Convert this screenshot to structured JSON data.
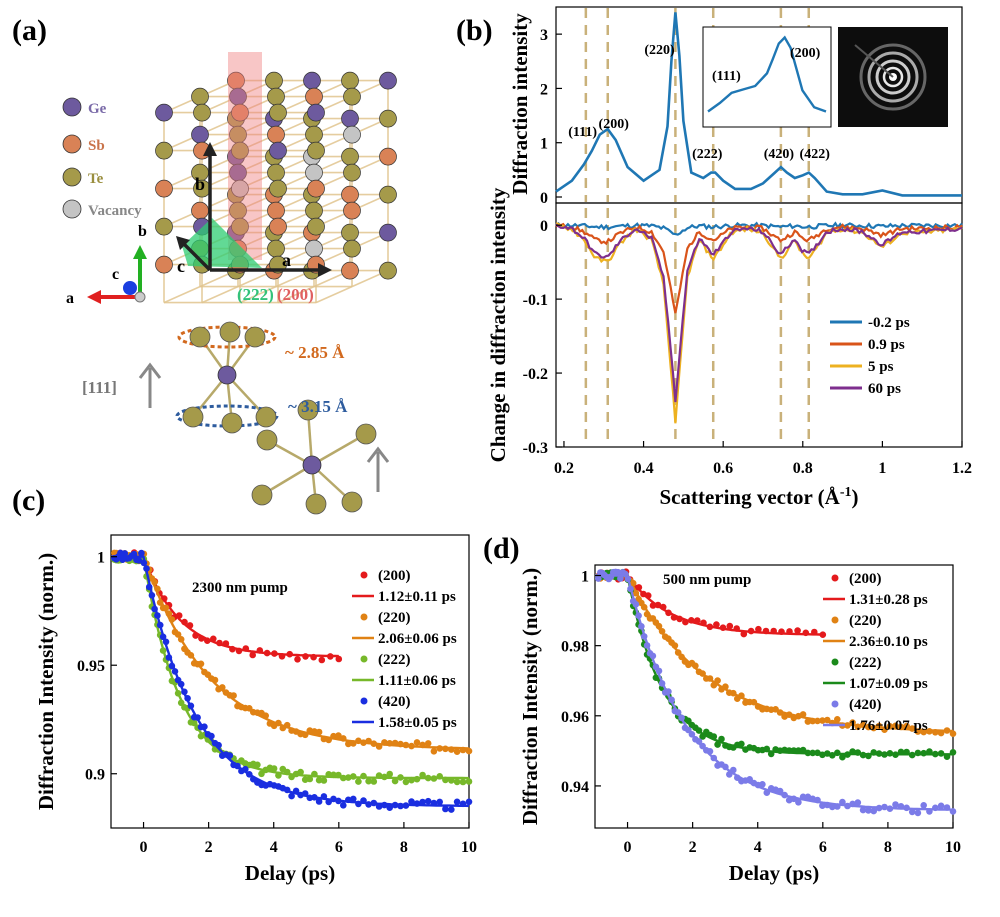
{
  "panels": {
    "a": {
      "label": "(a)",
      "elements": [
        {
          "name": "Ge",
          "color": "#6d5a9e"
        },
        {
          "name": "Sb",
          "color": "#d98256"
        },
        {
          "name": "Te",
          "color": "#a59a4a"
        },
        {
          "name": "Vacancy",
          "color": "#c4c4c4"
        }
      ],
      "axes": {
        "a": "a",
        "b": "b",
        "c": "c"
      },
      "planes": {
        "p222": "(222)",
        "p200": "(200)"
      },
      "bonds": {
        "short": "~ 2.85 Å",
        "long": "~ 3.15 Å",
        "direction": "[111]"
      }
    },
    "b": {
      "label": "(b)"
    },
    "c": {
      "label": "(c)"
    },
    "d": {
      "label": "(d)"
    }
  },
  "chart_data": [
    {
      "id": "b-top",
      "type": "line",
      "ylabel": "Diffraction intensity",
      "xlim": [
        0.18,
        1.2
      ],
      "ylim": [
        0,
        3.5
      ],
      "yticks": [
        0,
        1,
        2,
        3
      ],
      "reflection_labels": [
        "(111)",
        "(200)",
        "(220)",
        "(222)",
        "(420)",
        "(422)"
      ],
      "dashed_lines_x": [
        0.255,
        0.31,
        0.48,
        0.575,
        0.745,
        0.815
      ],
      "color": "#1f77b4",
      "x": [
        0.18,
        0.22,
        0.25,
        0.27,
        0.29,
        0.31,
        0.33,
        0.36,
        0.4,
        0.44,
        0.46,
        0.47,
        0.48,
        0.49,
        0.5,
        0.52,
        0.55,
        0.57,
        0.58,
        0.6,
        0.63,
        0.67,
        0.7,
        0.73,
        0.745,
        0.76,
        0.78,
        0.8,
        0.815,
        0.83,
        0.86,
        0.9,
        0.95,
        1.0,
        1.05,
        1.1,
        1.2
      ],
      "y": [
        0.1,
        0.3,
        0.6,
        0.85,
        1.15,
        1.25,
        1.05,
        0.55,
        0.3,
        0.5,
        1.3,
        2.5,
        3.4,
        2.6,
        1.4,
        0.45,
        0.35,
        0.45,
        0.45,
        0.3,
        0.15,
        0.15,
        0.25,
        0.45,
        0.55,
        0.45,
        0.35,
        0.4,
        0.45,
        0.35,
        0.1,
        0.05,
        0.05,
        0.12,
        0.03,
        0.03,
        0.03
      ],
      "inset": {
        "labels": [
          "(111)",
          "(200)"
        ],
        "x": [
          0,
          0.1,
          0.2,
          0.3,
          0.4,
          0.5,
          0.55,
          0.6,
          0.65,
          0.7,
          0.75,
          0.8,
          0.9,
          1.0
        ],
        "y": [
          0.1,
          0.2,
          0.32,
          0.36,
          0.4,
          0.55,
          0.72,
          0.9,
          0.97,
          0.85,
          0.6,
          0.35,
          0.15,
          0.1
        ]
      }
    },
    {
      "id": "b-bottom",
      "type": "line",
      "xlabel": "Scattering vector (Å",
      "xlabel_sup": "-1",
      "xlabel_end": ")",
      "ylabel": "Change in diffraction intensity",
      "xlim": [
        0.18,
        1.2
      ],
      "ylim": [
        -0.3,
        0.03
      ],
      "xticks": [
        0.2,
        0.4,
        0.6,
        0.8,
        1,
        1.2
      ],
      "xtick_labels": [
        "0.2",
        "0.4",
        "0.6",
        "0.8",
        "1",
        "1.2"
      ],
      "yticks": [
        0,
        -0.1,
        -0.2,
        -0.3
      ],
      "ytick_labels": [
        "0",
        "-0.1",
        "-0.2",
        "-0.3"
      ],
      "dashed_lines_x": [
        0.255,
        0.31,
        0.48,
        0.575,
        0.745,
        0.815
      ],
      "series": [
        {
          "name": "-0.2 ps",
          "color": "#1f77b4",
          "scale": 0.05
        },
        {
          "name": "0.9 ps",
          "color": "#d9541a",
          "scale": 0.45
        },
        {
          "name": "5 ps",
          "color": "#edb120",
          "scale": 1.0
        },
        {
          "name": "60 ps",
          "color": "#7e2f8e",
          "scale": 0.88
        }
      ],
      "profile_x": [
        0.18,
        0.22,
        0.25,
        0.28,
        0.31,
        0.34,
        0.38,
        0.42,
        0.45,
        0.47,
        0.48,
        0.49,
        0.51,
        0.54,
        0.56,
        0.575,
        0.59,
        0.62,
        0.66,
        0.7,
        0.73,
        0.745,
        0.76,
        0.78,
        0.8,
        0.815,
        0.83,
        0.86,
        0.9,
        0.95,
        1.0,
        1.05,
        1.1,
        1.2
      ],
      "profile_y": [
        0,
        -0.005,
        -0.02,
        -0.045,
        -0.05,
        -0.025,
        -0.005,
        -0.02,
        -0.08,
        -0.2,
        -0.27,
        -0.2,
        -0.07,
        -0.02,
        -0.035,
        -0.045,
        -0.035,
        -0.01,
        -0.005,
        -0.01,
        -0.035,
        -0.045,
        -0.035,
        -0.02,
        -0.04,
        -0.045,
        -0.035,
        -0.01,
        -0.005,
        -0.01,
        -0.03,
        -0.01,
        -0.01,
        -0.005
      ]
    },
    {
      "id": "c",
      "type": "scatter",
      "annotation": "2300 nm pump",
      "xlabel": "Delay (ps)",
      "ylabel": "Diffraction Intensity (norm.)",
      "xlim": [
        -1,
        10
      ],
      "ylim": [
        0.875,
        1.01
      ],
      "xticks": [
        0,
        2,
        4,
        6,
        8,
        10
      ],
      "yticks": [
        1,
        0.95,
        0.9
      ],
      "ytick_labels": [
        "1",
        "0.95",
        "0.9"
      ],
      "series": [
        {
          "reflection": "(200)",
          "fit": "1.12±0.11 ps",
          "color": "#e41a1c",
          "plateau": 0.954,
          "tau": 1.12,
          "xmax": 6
        },
        {
          "reflection": "(220)",
          "fit": "2.06±0.06 ps",
          "color": "#e08214",
          "plateau": 0.911,
          "tau": 2.06,
          "xmax": 10
        },
        {
          "reflection": "(222)",
          "fit": "1.11±0.06 ps",
          "color": "#77b82a",
          "plateau": 0.898,
          "tau": 1.11,
          "xmax": 10
        },
        {
          "reflection": "(420)",
          "fit": "1.58±0.05 ps",
          "color": "#1a2ee0",
          "plateau": 0.885,
          "tau": 1.58,
          "xmax": 10
        }
      ]
    },
    {
      "id": "d",
      "type": "scatter",
      "annotation": "500 nm pump",
      "xlabel": "Delay (ps)",
      "ylabel": "Diffraction Intensity (norm.)",
      "xlim": [
        -1,
        10
      ],
      "ylim": [
        0.928,
        1.003
      ],
      "xticks": [
        0,
        2,
        4,
        6,
        8,
        10
      ],
      "yticks": [
        1,
        0.98,
        0.96,
        0.94
      ],
      "ytick_labels": [
        "1",
        "0.98",
        "0.96",
        "0.94"
      ],
      "series": [
        {
          "reflection": "(200)",
          "fit": "1.31±0.28 ps",
          "color": "#e41a1c",
          "plateau": 0.983,
          "tau": 1.31,
          "xmax": 6
        },
        {
          "reflection": "(220)",
          "fit": "2.36±0.10 ps",
          "color": "#e08214",
          "plateau": 0.955,
          "tau": 2.36,
          "xmax": 10
        },
        {
          "reflection": "(222)",
          "fit": "1.07±0.09 ps",
          "color": "#1b8a1b",
          "plateau": 0.949,
          "tau": 1.07,
          "xmax": 10
        },
        {
          "reflection": "(420)",
          "fit": "1.76±0.07 ps",
          "color": "#7b7be8",
          "plateau": 0.933,
          "tau": 1.76,
          "xmax": 10
        }
      ]
    }
  ]
}
